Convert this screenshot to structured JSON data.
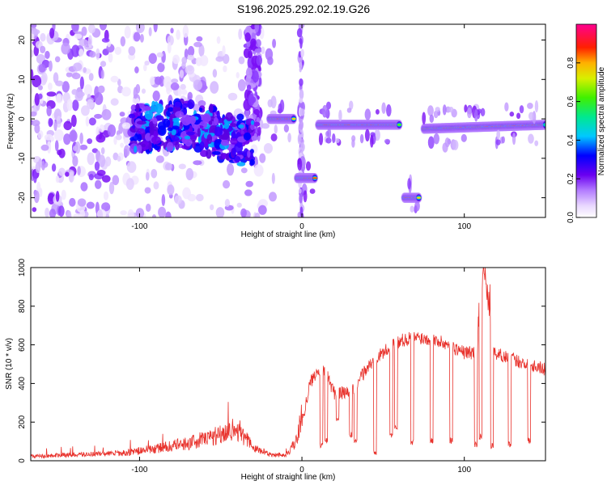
{
  "title": "S196.2025.292.02.19.G26",
  "chart_data": [
    {
      "type": "heatmap",
      "name": "spectrogram",
      "xlabel": "Height of straight line (km)",
      "ylabel": "Frequency (Hz)",
      "xlim": [
        -167,
        150
      ],
      "ylim": [
        -25,
        24
      ],
      "xticks": [
        -100,
        0,
        100
      ],
      "yticks": [
        -20,
        -10,
        0,
        10,
        20
      ],
      "colorbar": {
        "label": "Normalized spectral amplitude",
        "range": [
          0,
          1
        ],
        "ticks": [
          0.0,
          0.2,
          0.4,
          0.6,
          0.8
        ],
        "tick_labels": [
          "0.0",
          "0.2",
          "0.4",
          "0.6",
          "0.8"
        ]
      },
      "tracks": [
        {
          "x": [
            -100,
            -70,
            -50,
            -35
          ],
          "freq": [
            -3,
            -1,
            -3,
            -6
          ],
          "kind": "diffuse"
        },
        {
          "x": [
            -20,
            -5
          ],
          "freq": [
            0,
            0
          ],
          "kind": "narrow"
        },
        {
          "x": [
            -3,
            8
          ],
          "freq": [
            -15,
            -15
          ],
          "kind": "narrow"
        },
        {
          "x": [
            10,
            60
          ],
          "freq": [
            -1.5,
            -1.5
          ],
          "kind": "narrow"
        },
        {
          "x": [
            63,
            72
          ],
          "freq": [
            -20,
            -20
          ],
          "kind": "narrow"
        },
        {
          "x": [
            75,
            150
          ],
          "freq": [
            -2.5,
            -1.5
          ],
          "kind": "narrow"
        }
      ]
    },
    {
      "type": "line",
      "name": "snr",
      "xlabel": "Height of straight line (km)",
      "ylabel": "SNR (10 * v/v)",
      "xlim": [
        -167,
        150
      ],
      "ylim": [
        0,
        1000
      ],
      "xticks": [
        -100,
        0,
        100
      ],
      "yticks": [
        0,
        200,
        400,
        600,
        800,
        1000
      ],
      "color": "#e8312b",
      "series": [
        {
          "name": "SNR",
          "x": [
            -167,
            -150,
            -130,
            -110,
            -90,
            -70,
            -55,
            -40,
            -30,
            -20,
            -10,
            -5,
            0,
            5,
            10,
            15,
            20,
            30,
            40,
            50,
            60,
            70,
            80,
            90,
            100,
            108,
            112,
            118,
            125,
            135,
            145,
            150
          ],
          "y": [
            20,
            25,
            30,
            35,
            55,
            80,
            110,
            150,
            60,
            30,
            25,
            70,
            200,
            400,
            480,
            450,
            350,
            350,
            480,
            560,
            620,
            640,
            630,
            600,
            560,
            560,
            1000,
            560,
            540,
            510,
            490,
            470
          ]
        }
      ],
      "dropouts": [
        {
          "x": 12,
          "y": 60
        },
        {
          "x": 15,
          "y": 90
        },
        {
          "x": 22,
          "y": 200
        },
        {
          "x": 30,
          "y": 120
        },
        {
          "x": 33,
          "y": 80
        },
        {
          "x": 45,
          "y": 30
        },
        {
          "x": 55,
          "y": 120
        },
        {
          "x": 58,
          "y": 160
        },
        {
          "x": 68,
          "y": 80
        },
        {
          "x": 80,
          "y": 90
        },
        {
          "x": 92,
          "y": 90
        },
        {
          "x": 107,
          "y": 70
        },
        {
          "x": 110,
          "y": 110
        },
        {
          "x": 117,
          "y": 60
        },
        {
          "x": 128,
          "y": 70
        },
        {
          "x": 140,
          "y": 90
        }
      ]
    }
  ]
}
